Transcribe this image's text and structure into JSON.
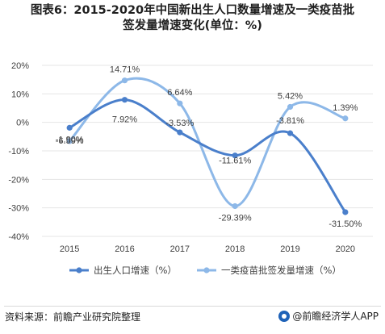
{
  "title_line1": "图表6：2015-2020年中国新出生人口数量增速及一类疫苗批",
  "title_line2": "签发量增速变化(单位：%)",
  "footer": {
    "source": "资料来源：前瞻产业研究院整理",
    "brand": "@前瞻经济学人APP"
  },
  "colors": {
    "series1": "#4a7fcb",
    "series2": "#8db8e8",
    "grid": "#e4e4e4",
    "axis_text": "#404040",
    "label_text": "#404040"
  },
  "chart_data": {
    "type": "line",
    "smooth": true,
    "x": [
      "2015",
      "2016",
      "2017",
      "2018",
      "2019",
      "2020"
    ],
    "ylim": [
      -40,
      20
    ],
    "yticks": [
      "20%",
      "10%",
      "0%",
      "-10%",
      "-20%",
      "-30%",
      "-40%"
    ],
    "ytick_values": [
      20,
      10,
      0,
      -10,
      -20,
      -30,
      -40
    ],
    "grid": "horizontal",
    "legend_position": "bottom",
    "series": [
      {
        "name": "出生人口增速（%）",
        "values": [
          -1.9,
          7.92,
          -3.53,
          -11.61,
          -3.81,
          -31.5
        ],
        "labels": [
          "-1.90%",
          "7.92%",
          "-3.53%",
          "-11.61%",
          "-3.81%",
          "-31.50%"
        ]
      },
      {
        "name": "一类疫苗批签发量增速（%）",
        "values": [
          -6.59,
          14.71,
          6.64,
          -29.39,
          5.42,
          1.39
        ],
        "labels": [
          "-6.59%",
          "14.71%",
          "6.64%",
          "-29.39%",
          "5.42%",
          "1.39%"
        ]
      }
    ]
  }
}
